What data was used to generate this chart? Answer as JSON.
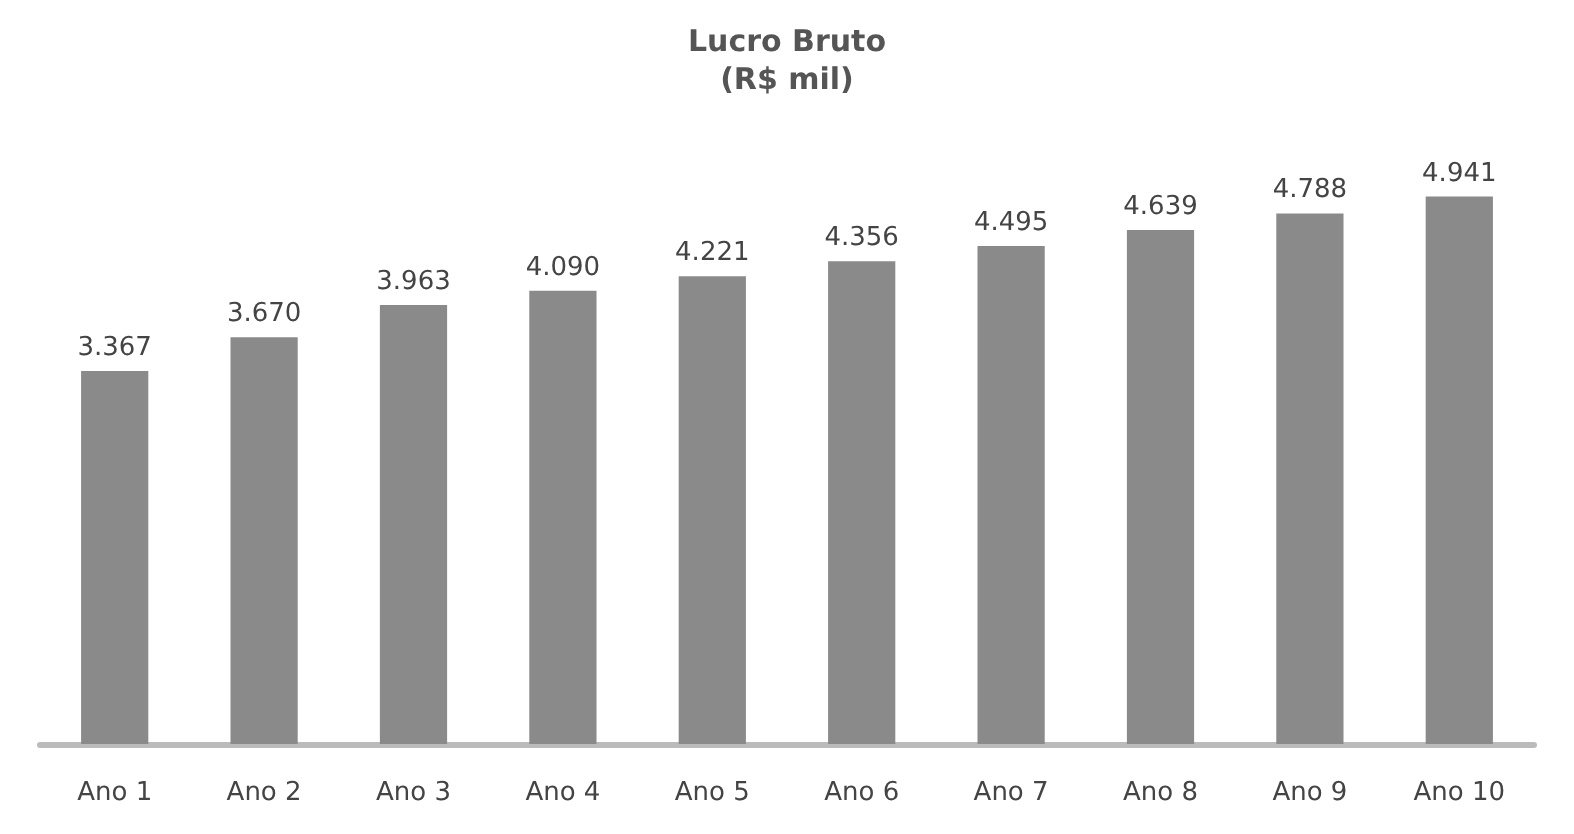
{
  "chart_data": {
    "type": "bar",
    "title": "Lucro Bruto",
    "subtitle": "(R$ mil)",
    "categories": [
      "Ano 1",
      "Ano 2",
      "Ano 3",
      "Ano 4",
      "Ano 5",
      "Ano 6",
      "Ano 7",
      "Ano 8",
      "Ano 9",
      "Ano 10"
    ],
    "values": [
      3367,
      3670,
      3963,
      4090,
      4221,
      4356,
      4495,
      4639,
      4788,
      4941
    ],
    "value_labels": [
      "3.367",
      "3.670",
      "3.963",
      "4.090",
      "4.221",
      "4.356",
      "4.495",
      "4.639",
      "4.788",
      "4.941"
    ],
    "color": "#8a8a8a"
  }
}
